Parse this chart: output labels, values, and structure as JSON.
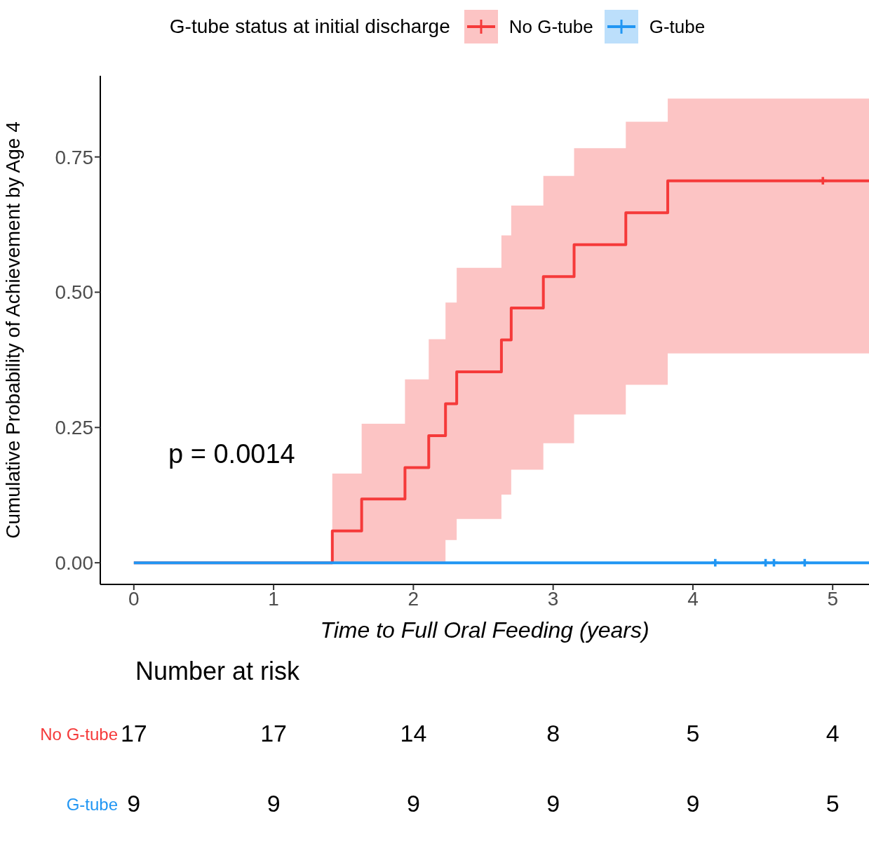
{
  "chart_data": [
    {
      "type": "step",
      "xlabel": "Time to Full Oral Feeding (years)",
      "ylabel": "Cumulative Probability of Achievement by Age 4",
      "legend_title": "G-tube status at initial discharge",
      "legend": "top",
      "grid": false,
      "line_style": "solid",
      "xlim": [
        -0.24,
        5.26
      ],
      "xticks": [
        0,
        1,
        2,
        3,
        4,
        5
      ],
      "ylim": [
        -0.04,
        0.9
      ],
      "yticks": [
        {
          "value": 0,
          "label": "0.00"
        },
        0.25,
        {
          "value": 0.5,
          "label": "0.50"
        },
        0.75
      ],
      "annotations": [
        "p = 0.0014"
      ],
      "series": [
        {
          "name": "No G-tube",
          "color": "#f53a3a",
          "x": [
            0,
            1.42,
            1.63,
            1.94,
            2.11,
            2.23,
            2.31,
            2.63,
            2.7,
            2.93,
            3.15,
            3.52,
            3.82,
            5.26
          ],
          "values": [
            0,
            0.059,
            0.118,
            0.176,
            0.235,
            0.294,
            0.353,
            0.412,
            0.471,
            0.529,
            0.588,
            0.647,
            0.706,
            0.706
          ],
          "lower": [
            0,
            0,
            0,
            0,
            0,
            0.042,
            0.081,
            0.126,
            0.172,
            0.221,
            0.274,
            0.329,
            0.387,
            0.387
          ],
          "upper": [
            0,
            0.165,
            0.257,
            0.339,
            0.413,
            0.481,
            0.545,
            0.605,
            0.66,
            0.715,
            0.766,
            0.815,
            0.858,
            0.858
          ]
        },
        {
          "name": "G-tube",
          "color": "#2196f3",
          "x": [
            0,
            5.26
          ],
          "values": [
            0,
            0
          ]
        },
        {
          "type": "scatter",
          "marker": "cross",
          "color": "#f53a3a",
          "x": [
            4.93
          ],
          "values": [
            0.706
          ]
        },
        {
          "type": "scatter",
          "marker": "cross",
          "color": "#2196f3",
          "x": [
            4.16,
            4.52,
            4.58,
            4.8
          ],
          "values": [
            0,
            0,
            0,
            0
          ]
        }
      ]
    },
    {
      "type": "other",
      "title": "Number at risk",
      "annotations": [
        "No G-tube",
        "17",
        "17",
        "14",
        "8",
        "5",
        "4",
        "G-tube",
        "9",
        "9",
        "9",
        "9",
        "9",
        "5"
      ]
    }
  ]
}
